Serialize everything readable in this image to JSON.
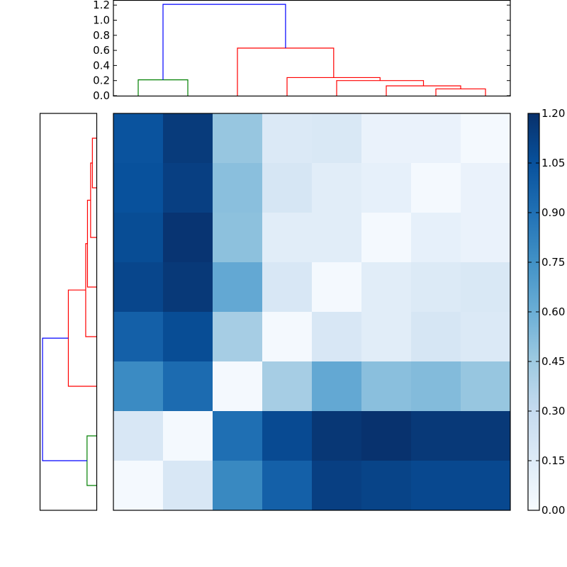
{
  "chart_data": {
    "type": "heatmap",
    "title": "",
    "description": "Clustered distance matrix heatmap with row and column dendrograms (8 leaves)",
    "colormap": "Blues",
    "heatmap": {
      "rows": 8,
      "cols": 8,
      "values": [
        [
          1.04,
          1.15,
          0.47,
          0.17,
          0.18,
          0.08,
          0.08,
          0.02
        ],
        [
          1.05,
          1.13,
          0.51,
          0.2,
          0.13,
          0.1,
          0.02,
          0.08
        ],
        [
          1.07,
          1.18,
          0.5,
          0.13,
          0.13,
          0.02,
          0.1,
          0.08
        ],
        [
          1.1,
          1.16,
          0.63,
          0.19,
          0.02,
          0.13,
          0.16,
          0.18
        ],
        [
          0.98,
          1.07,
          0.42,
          0.02,
          0.19,
          0.13,
          0.2,
          0.17
        ],
        [
          0.78,
          0.93,
          0.02,
          0.42,
          0.63,
          0.51,
          0.53,
          0.47
        ],
        [
          0.19,
          0.02,
          0.91,
          1.08,
          1.17,
          1.19,
          1.16,
          1.16
        ],
        [
          0.02,
          0.19,
          0.79,
          0.98,
          1.13,
          1.11,
          1.09,
          1.09
        ]
      ]
    },
    "colorbar": {
      "ticks": [
        "0.00",
        "0.15",
        "0.30",
        "0.45",
        "0.60",
        "0.75",
        "0.90",
        "1.05",
        "1.20"
      ],
      "vmin": 0.0,
      "vmax": 1.2
    },
    "top_dendrogram": {
      "yticks": [
        "0.0",
        "0.2",
        "0.4",
        "0.6",
        "0.8",
        "1.0",
        "1.2"
      ],
      "ylim": [
        0,
        1.27
      ],
      "leaf_count": 8,
      "links": [
        {
          "color": "#008000",
          "left": 0,
          "right": 1,
          "height": 0.21
        },
        {
          "color": "#ff0000",
          "left": 6,
          "right": 7,
          "height": 0.09
        },
        {
          "color": "#ff0000",
          "left": 5,
          "right": 6.5,
          "height": 0.13
        },
        {
          "color": "#ff0000",
          "left": 4,
          "right": 5.75,
          "height": 0.2
        },
        {
          "color": "#ff0000",
          "left": 3,
          "right": 4.875,
          "height": 0.24
        },
        {
          "color": "#ff0000",
          "left": 2,
          "right": 3.94,
          "height": 0.63
        },
        {
          "color": "#0000ff",
          "left": 0.5,
          "right": 2.97,
          "height": 1.21
        }
      ]
    },
    "left_dendrogram": {
      "leaf_count": 8,
      "links": [
        {
          "color": "#ff0000",
          "a": 0,
          "b": 1,
          "height": 0.09
        },
        {
          "color": "#ff0000",
          "a": 0.5,
          "b": 2,
          "height": 0.13
        },
        {
          "color": "#ff0000",
          "a": 1.25,
          "b": 3,
          "height": 0.2
        },
        {
          "color": "#ff0000",
          "a": 2.125,
          "b": 4,
          "height": 0.24
        },
        {
          "color": "#ff0000",
          "a": 3.06,
          "b": 5,
          "height": 0.63
        },
        {
          "color": "#008000",
          "a": 6,
          "b": 7,
          "height": 0.21
        },
        {
          "color": "#0000ff",
          "a": 4.03,
          "b": 6.5,
          "height": 1.21
        }
      ]
    }
  }
}
